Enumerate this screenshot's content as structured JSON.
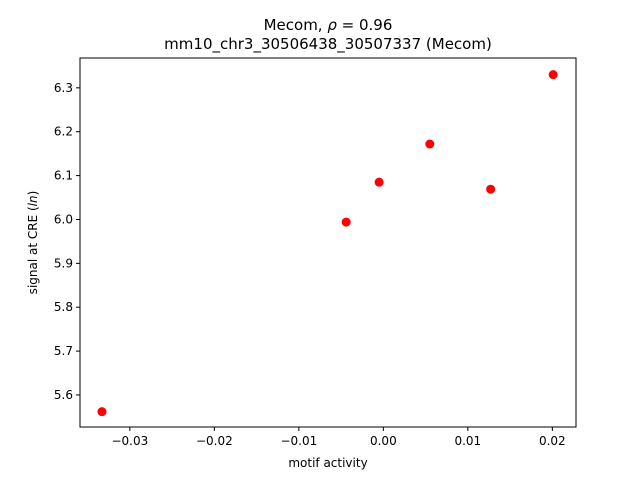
{
  "chart_data": {
    "type": "scatter",
    "title_line1_prefix": "Mecom, ",
    "title_line1_symbol": "ρ",
    "title_line1_suffix": " = 0.96",
    "title_line2": "mm10_chr3_30506438_30507337 (Mecom)",
    "xlabel": "motif activity",
    "ylabel_prefix": "signal at CRE (",
    "ylabel_italic": "ln",
    "ylabel_suffix": ")",
    "xlim": [
      -0.0359,
      0.0228
    ],
    "ylim": [
      5.527,
      6.368
    ],
    "xticks": [
      -0.03,
      -0.02,
      -0.01,
      0.0,
      0.01,
      0.02
    ],
    "xtick_labels": [
      "−0.03",
      "−0.02",
      "−0.01",
      "0.00",
      "0.01",
      "0.02"
    ],
    "yticks": [
      5.6,
      5.7,
      5.8,
      5.9,
      6.0,
      6.1,
      6.2,
      6.3
    ],
    "ytick_labels": [
      "5.6",
      "5.7",
      "5.8",
      "5.9",
      "6.0",
      "6.1",
      "6.2",
      "6.3"
    ],
    "points": [
      {
        "x": -0.0333,
        "y": 5.562
      },
      {
        "x": -0.0044,
        "y": 5.994
      },
      {
        "x": -0.0005,
        "y": 6.085
      },
      {
        "x": 0.0055,
        "y": 6.172
      },
      {
        "x": 0.0127,
        "y": 6.069
      },
      {
        "x": 0.0201,
        "y": 6.33
      }
    ],
    "marker_color": "#ff0000",
    "grid": false,
    "legend": "none"
  }
}
